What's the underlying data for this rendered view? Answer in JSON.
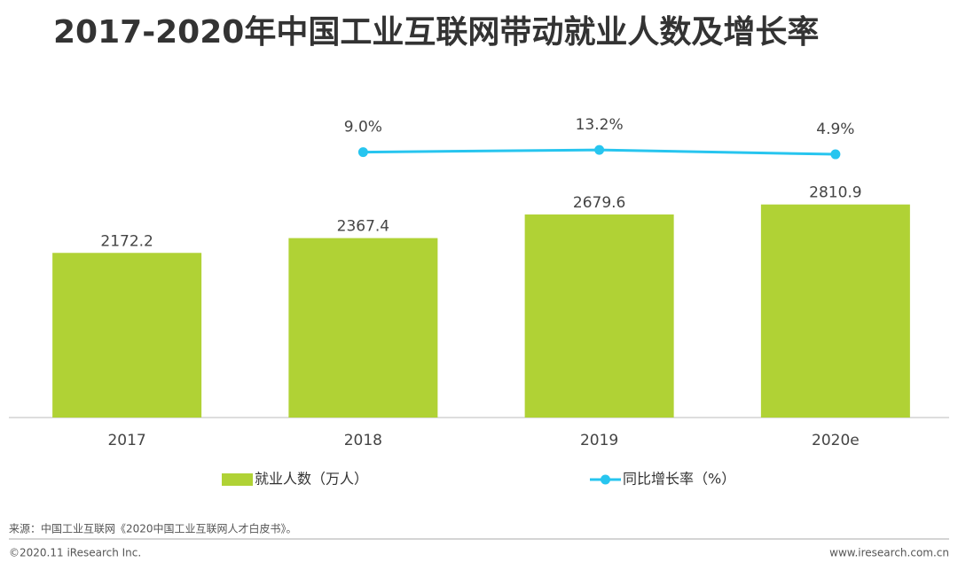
{
  "chart_data": {
    "type": "bar",
    "title": "2017-2020年中国工业互联网带动就业人数及增长率",
    "categories": [
      "2017",
      "2018",
      "2019",
      "2020e"
    ],
    "series": [
      {
        "name": "就业人数（万人）",
        "type": "bar",
        "color": "#b0d235",
        "values": [
          2172.2,
          2367.4,
          2679.6,
          2810.9
        ]
      },
      {
        "name": "同比增长率（%）",
        "type": "line",
        "axis": "y2",
        "color": "#27c5ef",
        "values": [
          null,
          9.0,
          13.2,
          4.9
        ],
        "value_labels": [
          null,
          "9.0%",
          "13.2%",
          "4.9%"
        ]
      }
    ],
    "ylim": [
      0,
      4000
    ],
    "y2lim": [
      -490,
      80
    ],
    "grid": false,
    "source": "来源：中国工业互联网《2020中国工业互联网人才白皮书》。",
    "copyright": "©2020.11 iResearch Inc.",
    "website": "www.iresearch.com.cn"
  }
}
